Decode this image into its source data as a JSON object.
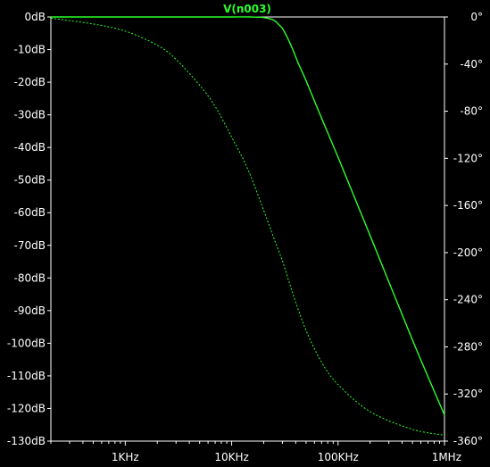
{
  "chart_data": {
    "type": "line",
    "trace_label": "V(n003)",
    "x_scale": "log",
    "x_unit": "Hz",
    "xlim": [
      200,
      1000000
    ],
    "x_ticks": [
      {
        "value": 1000,
        "label": "1KHz"
      },
      {
        "value": 10000,
        "label": "10KHz"
      },
      {
        "value": 100000,
        "label": "100KHz"
      },
      {
        "value": 1000000,
        "label": "1MHz"
      }
    ],
    "y_left_ticks": [
      "0dB",
      "-10dB",
      "-20dB",
      "-30dB",
      "-40dB",
      "-50dB",
      "-60dB",
      "-70dB",
      "-80dB",
      "-90dB",
      "-100dB",
      "-110dB",
      "-120dB",
      "-130dB"
    ],
    "ylim_left": [
      -130,
      0
    ],
    "y_right_ticks": [
      "0°",
      "-40°",
      "-80°",
      "-120°",
      "-160°",
      "-200°",
      "-240°",
      "-280°",
      "-320°",
      "-360°"
    ],
    "ylim_right": [
      -360,
      0
    ],
    "series": [
      {
        "style": "solid",
        "quantity": "magnitude",
        "axis": "left",
        "x": [
          200,
          1000,
          5000,
          10000,
          15000,
          20000,
          25000,
          28000,
          30000,
          33000,
          37000,
          42000,
          50000,
          70000,
          100000,
          200000,
          500000,
          1000000
        ],
        "y": [
          0,
          0,
          0,
          0,
          0,
          -0.2,
          -1,
          -2.5,
          -3.5,
          -6,
          -9.5,
          -14,
          -19.5,
          -31,
          -43,
          -67,
          -99,
          -122
        ]
      },
      {
        "style": "dotted",
        "quantity": "phase",
        "axis": "right",
        "x": [
          200,
          500,
          1000,
          2000,
          3000,
          5000,
          7000,
          10000,
          14000,
          20000,
          25000,
          30000,
          35000,
          40000,
          50000,
          70000,
          100000,
          200000,
          500000,
          1000000
        ],
        "y": [
          -1,
          -6,
          -12,
          -24,
          -36,
          -58,
          -76,
          -102,
          -128,
          -164,
          -188,
          -207,
          -226,
          -242,
          -266,
          -293,
          -312,
          -335,
          -350,
          -355
        ]
      }
    ],
    "colors": {
      "background": "#000000",
      "frame": "#ffffff",
      "trace": "#2bff2b",
      "labels": "#ffffff"
    },
    "grid": false,
    "legend": "top-center"
  }
}
